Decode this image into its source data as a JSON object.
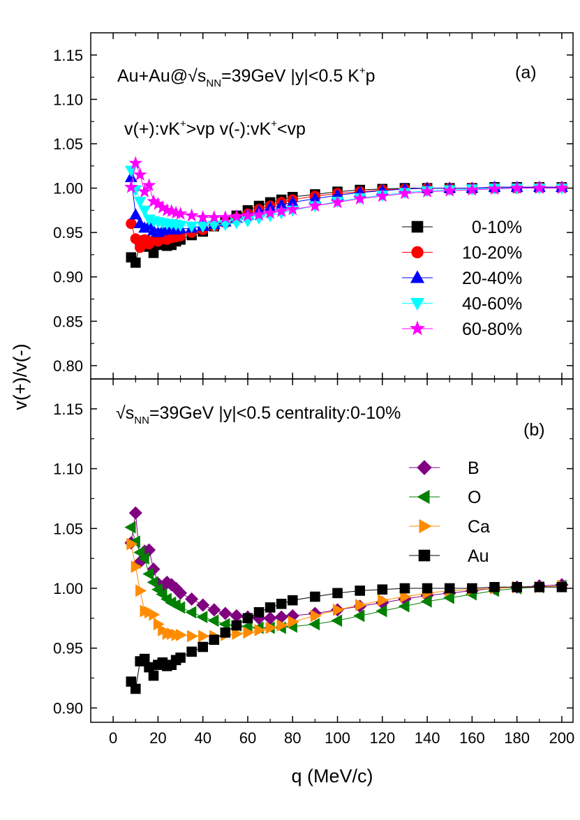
{
  "figure": {
    "ylabel": "v(+)/v(-)",
    "xlabel": "q (MeV/c)",
    "xlim": [
      -10,
      205
    ],
    "xticks": [
      "0",
      "20",
      "40",
      "60",
      "80",
      "100",
      "120",
      "140",
      "160",
      "180",
      "200"
    ]
  },
  "chart_data": [
    {
      "type": "scatter",
      "panel": "(a)",
      "title_parts": [
        "Au+Au@√s",
        "NN",
        "=39GeV |y|<0.5 K",
        "+",
        "p"
      ],
      "subtitle_parts": [
        "v(+):vK",
        "+",
        ">vp v(-):vK",
        "+",
        "<vp"
      ],
      "xlabel": "q (MeV/c)",
      "ylabel": "v(+)/v(-)",
      "ylim": [
        0.785,
        1.175
      ],
      "yticks": [
        "0.80",
        "0.85",
        "0.90",
        "0.95",
        "1.00",
        "1.05",
        "1.10",
        "1.15"
      ],
      "legend_position": "right-middle",
      "series": [
        {
          "name": "  0-10%",
          "color": "#000000",
          "marker": "square",
          "x": [
            8,
            10,
            12,
            14,
            16,
            18,
            20,
            22,
            24,
            26,
            28,
            30,
            35,
            40,
            45,
            50,
            55,
            60,
            65,
            70,
            75,
            80,
            90,
            100,
            110,
            120,
            130,
            140,
            150,
            160,
            170,
            180,
            190,
            200
          ],
          "y": [
            0.922,
            0.916,
            0.939,
            0.941,
            0.934,
            0.927,
            0.936,
            0.938,
            0.935,
            0.936,
            0.94,
            0.942,
            0.947,
            0.951,
            0.957,
            0.963,
            0.969,
            0.975,
            0.98,
            0.984,
            0.987,
            0.99,
            0.993,
            0.996,
            0.998,
            0.999,
            1.0,
            1.0,
            1.0,
            1.0,
            1.001,
            1.001,
            1.001,
            1.001
          ]
        },
        {
          "name": "10-20%",
          "color": "#ff0000",
          "marker": "circle",
          "x": [
            8,
            10,
            12,
            14,
            16,
            18,
            20,
            22,
            24,
            26,
            28,
            30,
            35,
            40,
            45,
            50,
            55,
            60,
            65,
            70,
            75,
            80,
            90,
            100,
            110,
            120,
            130,
            140,
            150,
            160,
            170,
            180,
            190,
            200
          ],
          "y": [
            0.96,
            0.943,
            0.933,
            0.942,
            0.937,
            0.941,
            0.94,
            0.943,
            0.942,
            0.944,
            0.945,
            0.946,
            0.95,
            0.953,
            0.957,
            0.961,
            0.966,
            0.971,
            0.976,
            0.98,
            0.984,
            0.987,
            0.991,
            0.994,
            0.996,
            0.998,
            0.999,
            1.0,
            1.0,
            1.0,
            1.0,
            1.0,
            1.001,
            1.001
          ]
        },
        {
          "name": "20-40%",
          "color": "#0000ff",
          "marker": "triangle-up",
          "x": [
            8,
            10,
            12,
            14,
            16,
            18,
            20,
            22,
            24,
            26,
            28,
            30,
            35,
            40,
            45,
            50,
            55,
            60,
            65,
            70,
            75,
            80,
            90,
            100,
            110,
            120,
            130,
            140,
            150,
            160,
            170,
            180,
            190,
            200
          ],
          "y": [
            1.012,
            0.97,
            0.96,
            0.955,
            0.958,
            0.952,
            0.95,
            0.952,
            0.953,
            0.953,
            0.953,
            0.954,
            0.955,
            0.957,
            0.959,
            0.962,
            0.966,
            0.97,
            0.974,
            0.978,
            0.981,
            0.984,
            0.988,
            0.992,
            0.995,
            0.997,
            0.999,
            1.0,
            1.0,
            1.0,
            1.001,
            1.001,
            1.001,
            1.001
          ]
        },
        {
          "name": "40-60%",
          "color": "#00ffff",
          "marker": "triangle-down",
          "x": [
            8,
            10,
            12,
            14,
            16,
            18,
            20,
            22,
            24,
            26,
            28,
            30,
            35,
            40,
            45,
            50,
            55,
            60,
            65,
            70,
            75,
            80,
            90,
            100,
            110,
            120,
            130,
            140,
            150,
            160,
            170,
            180,
            190,
            200
          ],
          "y": [
            1.02,
            0.998,
            0.985,
            0.975,
            0.965,
            0.963,
            0.962,
            0.961,
            0.96,
            0.96,
            0.959,
            0.958,
            0.957,
            0.957,
            0.958,
            0.959,
            0.961,
            0.963,
            0.966,
            0.969,
            0.972,
            0.975,
            0.98,
            0.985,
            0.989,
            0.992,
            0.995,
            0.997,
            0.998,
            0.999,
            1.0,
            1.0,
            1.0,
            1.0
          ]
        },
        {
          "name": "60-80%",
          "color": "#ff00ff",
          "marker": "star",
          "x": [
            8,
            10,
            12,
            14,
            16,
            18,
            20,
            22,
            24,
            26,
            28,
            30,
            35,
            40,
            45,
            50,
            55,
            60,
            65,
            70,
            75,
            80,
            90,
            100,
            110,
            120,
            130,
            140,
            150,
            160,
            170,
            180,
            190,
            200
          ],
          "y": [
            1.001,
            1.028,
            1.015,
            0.996,
            1.003,
            0.985,
            0.982,
            0.978,
            0.975,
            0.974,
            0.972,
            0.971,
            0.969,
            0.967,
            0.967,
            0.967,
            0.968,
            0.969,
            0.97,
            0.972,
            0.974,
            0.976,
            0.98,
            0.984,
            0.988,
            0.991,
            0.994,
            0.996,
            0.997,
            0.998,
            0.999,
            1.0,
            1.0,
            1.0
          ]
        }
      ]
    },
    {
      "type": "scatter",
      "panel": "(b)",
      "title_parts": [
        "√s",
        "NN",
        "=39GeV |y|<0.5 centrality:0-10%"
      ],
      "xlabel": "q (MeV/c)",
      "ylabel": "v(+)/v(-)",
      "ylim": [
        0.888,
        1.175
      ],
      "yticks": [
        "0.90",
        "0.95",
        "1.00",
        "1.05",
        "1.10",
        "1.15"
      ],
      "legend_position": "right-middle",
      "series": [
        {
          "name": "B",
          "color": "#800080",
          "marker": "diamond",
          "x": [
            8,
            10,
            12,
            14,
            16,
            18,
            20,
            22,
            24,
            26,
            28,
            30,
            35,
            40,
            45,
            50,
            55,
            60,
            65,
            70,
            75,
            80,
            90,
            100,
            110,
            120,
            130,
            140,
            150,
            160,
            170,
            180,
            190,
            200
          ],
          "y": [
            1.038,
            1.063,
            1.022,
            1.031,
            1.032,
            1.016,
            1.004,
            1.001,
            1.005,
            1.003,
            1.0,
            0.996,
            0.991,
            0.986,
            0.982,
            0.979,
            0.977,
            0.976,
            0.975,
            0.975,
            0.976,
            0.977,
            0.979,
            0.982,
            0.985,
            0.988,
            0.991,
            0.994,
            0.996,
            0.998,
            1.0,
            1.001,
            1.002,
            1.003
          ]
        },
        {
          "name": "O",
          "color": "#008000",
          "marker": "triangle-left",
          "x": [
            8,
            10,
            12,
            14,
            16,
            18,
            20,
            22,
            24,
            26,
            28,
            30,
            35,
            40,
            45,
            50,
            55,
            60,
            65,
            70,
            75,
            80,
            90,
            100,
            110,
            120,
            130,
            140,
            150,
            160,
            170,
            180,
            190,
            200
          ],
          "y": [
            1.051,
            1.039,
            1.03,
            1.025,
            1.012,
            1.005,
            0.999,
            0.995,
            0.991,
            0.988,
            0.986,
            0.984,
            0.98,
            0.976,
            0.973,
            0.97,
            0.969,
            0.968,
            0.967,
            0.967,
            0.967,
            0.968,
            0.97,
            0.973,
            0.977,
            0.981,
            0.985,
            0.989,
            0.992,
            0.995,
            0.998,
            1.0,
            1.001,
            1.002
          ]
        },
        {
          "name": "Ca",
          "color": "#ff8c00",
          "marker": "triangle-right",
          "x": [
            8,
            10,
            12,
            14,
            16,
            18,
            20,
            22,
            24,
            26,
            28,
            30,
            35,
            40,
            45,
            50,
            55,
            60,
            65,
            70,
            75,
            80,
            90,
            100,
            110,
            120,
            130,
            140,
            150,
            160,
            170,
            180,
            190,
            200
          ],
          "y": [
            1.037,
            1.018,
            0.998,
            0.981,
            0.98,
            0.978,
            0.97,
            0.965,
            0.962,
            0.962,
            0.961,
            0.961,
            0.96,
            0.96,
            0.96,
            0.961,
            0.962,
            0.963,
            0.965,
            0.967,
            0.969,
            0.972,
            0.977,
            0.982,
            0.986,
            0.99,
            0.993,
            0.996,
            0.998,
            0.999,
            1.0,
            1.001,
            1.001,
            1.002
          ]
        },
        {
          "name": "Au",
          "color": "#000000",
          "marker": "square",
          "x": [
            8,
            10,
            12,
            14,
            16,
            18,
            20,
            22,
            24,
            26,
            28,
            30,
            35,
            40,
            45,
            50,
            55,
            60,
            65,
            70,
            75,
            80,
            90,
            100,
            110,
            120,
            130,
            140,
            150,
            160,
            170,
            180,
            190,
            200
          ],
          "y": [
            0.922,
            0.916,
            0.939,
            0.941,
            0.934,
            0.927,
            0.936,
            0.938,
            0.935,
            0.936,
            0.94,
            0.942,
            0.947,
            0.951,
            0.957,
            0.963,
            0.969,
            0.975,
            0.98,
            0.984,
            0.987,
            0.99,
            0.993,
            0.996,
            0.998,
            0.999,
            1.0,
            1.0,
            1.0,
            1.0,
            1.001,
            1.001,
            1.001,
            1.001
          ]
        }
      ]
    }
  ]
}
